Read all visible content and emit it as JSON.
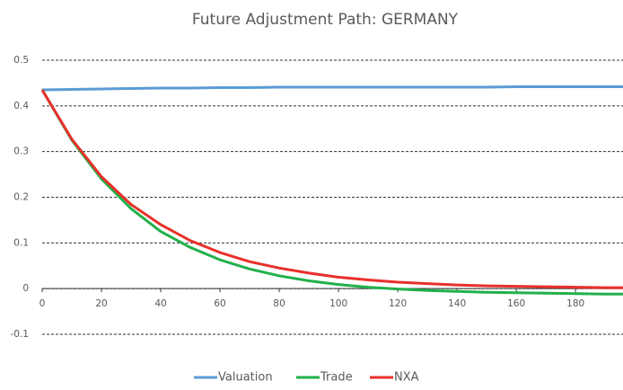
{
  "chart_data": {
    "type": "line",
    "title": "Future Adjustment Path: GERMANY",
    "x": [
      0,
      10,
      20,
      30,
      40,
      50,
      60,
      70,
      80,
      90,
      100,
      110,
      120,
      130,
      140,
      150,
      160,
      170,
      180,
      190,
      196
    ],
    "series": [
      {
        "name": "Valuation",
        "color": "#5b9bd5",
        "values": [
          0.435,
          0.436,
          0.437,
          0.438,
          0.439,
          0.439,
          0.44,
          0.44,
          0.441,
          0.441,
          0.441,
          0.441,
          0.441,
          0.441,
          0.441,
          0.441,
          0.442,
          0.442,
          0.442,
          0.442,
          0.442
        ]
      },
      {
        "name": "Trade",
        "color": "#21b04b",
        "values": [
          0.435,
          0.325,
          0.24,
          0.175,
          0.125,
          0.09,
          0.063,
          0.043,
          0.028,
          0.017,
          0.009,
          0.003,
          -0.001,
          -0.004,
          -0.006,
          -0.008,
          -0.009,
          -0.01,
          -0.011,
          -0.012,
          -0.012
        ]
      },
      {
        "name": "NXA",
        "color": "#e8302a",
        "values": [
          0.435,
          0.327,
          0.245,
          0.184,
          0.14,
          0.105,
          0.079,
          0.059,
          0.045,
          0.034,
          0.025,
          0.019,
          0.014,
          0.011,
          0.008,
          0.006,
          0.005,
          0.004,
          0.003,
          0.002,
          0.002
        ]
      }
    ],
    "xlim": [
      0,
      196
    ],
    "xticks": [
      0,
      20,
      40,
      60,
      80,
      100,
      120,
      140,
      160,
      180
    ],
    "ylim": [
      -0.1,
      0.5
    ],
    "yticks": [
      -0.1,
      0,
      0.1,
      0.2,
      0.3,
      0.4,
      0.5
    ],
    "grid": true,
    "legend": "bottom"
  }
}
